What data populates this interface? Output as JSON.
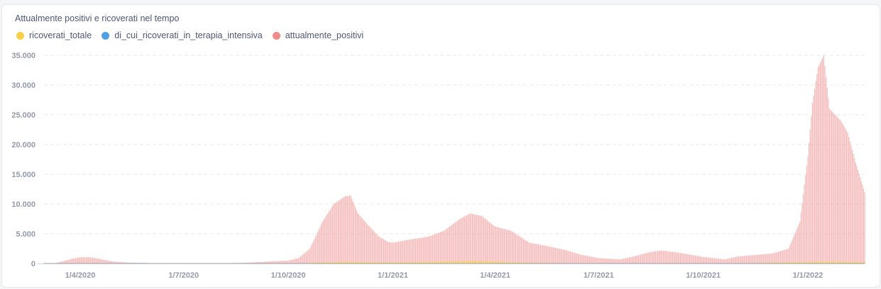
{
  "chart_data": {
    "type": "bar",
    "title": "Attualmente positivi e ricoverati nel tempo",
    "legend_position": "top-left",
    "grid": true,
    "ylim": [
      0,
      35000
    ],
    "y_ticks": [
      "0",
      "5.000",
      "10.000",
      "15.000",
      "20.000",
      "25.000",
      "30.000",
      "35.000"
    ],
    "y_tick_values": [
      0,
      5000,
      10000,
      15000,
      20000,
      25000,
      30000,
      35000
    ],
    "x_ticks": [
      "1/4/2020",
      "1/7/2020",
      "1/10/2020",
      "1/1/2021",
      "1/4/2021",
      "1/7/2021",
      "1/10/2021",
      "1/1/2022"
    ],
    "x_tick_dates": [
      "2020-04-01",
      "2020-07-01",
      "2020-10-01",
      "2021-01-01",
      "2021-04-01",
      "2021-07-01",
      "2021-10-01",
      "2022-01-01"
    ],
    "xlim": [
      "2020-02-24",
      "2022-02-20"
    ],
    "series": [
      {
        "name": "ricoverati_totale",
        "color": "#f9cf48",
        "points": [
          [
            "2020-02-24",
            0
          ],
          [
            "2020-04-01",
            80
          ],
          [
            "2020-06-01",
            10
          ],
          [
            "2020-10-01",
            20
          ],
          [
            "2020-11-20",
            300
          ],
          [
            "2021-01-01",
            200
          ],
          [
            "2021-03-15",
            450
          ],
          [
            "2021-05-01",
            150
          ],
          [
            "2021-07-01",
            20
          ],
          [
            "2021-09-01",
            80
          ],
          [
            "2021-11-01",
            30
          ],
          [
            "2022-01-15",
            350
          ],
          [
            "2022-02-20",
            250
          ]
        ]
      },
      {
        "name": "di_cui_ricoverati_in_terapia_intensiva",
        "color": "#509ee3",
        "points": [
          [
            "2020-02-24",
            0
          ],
          [
            "2020-04-01",
            15
          ],
          [
            "2020-11-20",
            40
          ],
          [
            "2021-03-15",
            60
          ],
          [
            "2021-07-01",
            3
          ],
          [
            "2022-01-15",
            40
          ],
          [
            "2022-02-20",
            25
          ]
        ]
      },
      {
        "name": "attualmente_positivi",
        "color": "#ef8c8c",
        "points": [
          [
            "2020-02-24",
            0
          ],
          [
            "2020-03-10",
            50
          ],
          [
            "2020-03-25",
            800
          ],
          [
            "2020-04-01",
            1050
          ],
          [
            "2020-04-10",
            1050
          ],
          [
            "2020-04-20",
            700
          ],
          [
            "2020-05-01",
            300
          ],
          [
            "2020-05-15",
            150
          ],
          [
            "2020-06-01",
            80
          ],
          [
            "2020-07-01",
            40
          ],
          [
            "2020-08-01",
            60
          ],
          [
            "2020-08-20",
            100
          ],
          [
            "2020-09-01",
            200
          ],
          [
            "2020-09-15",
            350
          ],
          [
            "2020-10-01",
            500
          ],
          [
            "2020-10-10",
            900
          ],
          [
            "2020-10-20",
            2500
          ],
          [
            "2020-10-31",
            7000
          ],
          [
            "2020-11-10",
            10000
          ],
          [
            "2020-11-20",
            11300
          ],
          [
            "2020-11-25",
            11400
          ],
          [
            "2020-12-01",
            8500
          ],
          [
            "2020-12-10",
            6500
          ],
          [
            "2020-12-20",
            4500
          ],
          [
            "2020-12-28",
            3600
          ],
          [
            "2021-01-01",
            3500
          ],
          [
            "2021-01-15",
            4000
          ],
          [
            "2021-02-01",
            4500
          ],
          [
            "2021-02-15",
            5500
          ],
          [
            "2021-03-01",
            7500
          ],
          [
            "2021-03-10",
            8400
          ],
          [
            "2021-03-20",
            8000
          ],
          [
            "2021-04-01",
            6200
          ],
          [
            "2021-04-15",
            5500
          ],
          [
            "2021-05-01",
            3500
          ],
          [
            "2021-05-15",
            3000
          ],
          [
            "2021-06-01",
            2300
          ],
          [
            "2021-06-15",
            1500
          ],
          [
            "2021-07-01",
            900
          ],
          [
            "2021-07-20",
            700
          ],
          [
            "2021-08-01",
            1200
          ],
          [
            "2021-08-15",
            1900
          ],
          [
            "2021-08-25",
            2200
          ],
          [
            "2021-09-10",
            1800
          ],
          [
            "2021-10-01",
            1100
          ],
          [
            "2021-10-20",
            700
          ],
          [
            "2021-11-01",
            1200
          ],
          [
            "2021-11-20",
            1500
          ],
          [
            "2021-12-01",
            1700
          ],
          [
            "2021-12-15",
            2500
          ],
          [
            "2021-12-25",
            7000
          ],
          [
            "2022-01-01",
            18000
          ],
          [
            "2022-01-05",
            27000
          ],
          [
            "2022-01-10",
            33000
          ],
          [
            "2022-01-15",
            35000
          ],
          [
            "2022-01-20",
            26000
          ],
          [
            "2022-01-30",
            24000
          ],
          [
            "2022-02-05",
            22000
          ],
          [
            "2022-02-12",
            17000
          ],
          [
            "2022-02-20",
            12000
          ]
        ]
      }
    ]
  }
}
